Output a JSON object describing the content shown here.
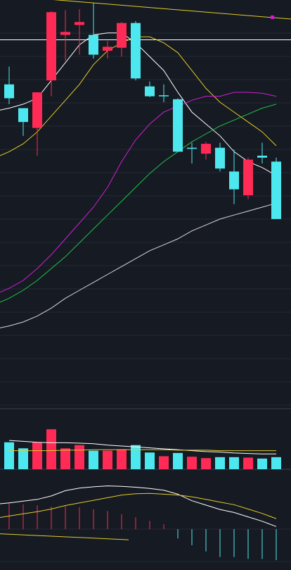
{
  "colors": {
    "background": "#161a22",
    "grid": "#232935",
    "separator": "#3a3f4a",
    "up": "#ff2a55",
    "down": "#4de8ef",
    "ma5": "#ffffff",
    "ma10": "#e2cd2a",
    "ma20": "#d11fd6",
    "ma30": "#21c44a",
    "ma60": "#d8d8d8",
    "trendline": "#e2cd2a",
    "crosshair": "#ffffff",
    "marker": "#e010e0"
  },
  "chart_data": [
    {
      "type": "candlestick",
      "price_range": [
        0,
        100
      ],
      "grid": true,
      "crosshair_level": 84.5,
      "candles": [
        {
          "o": 62,
          "h": 71,
          "l": 52,
          "c": 55,
          "dir": "down"
        },
        {
          "o": 43,
          "h": 50,
          "l": 36,
          "c": 50,
          "dir": "down"
        },
        {
          "o": 40,
          "h": 58,
          "l": 26,
          "c": 58,
          "dir": "up"
        },
        {
          "o": 64,
          "h": 99,
          "l": 56,
          "c": 98.5,
          "dir": "up"
        },
        {
          "o": 87,
          "h": 99.5,
          "l": 74,
          "c": 88.5,
          "dir": "up"
        },
        {
          "o": 92,
          "h": 100,
          "l": 77,
          "c": 93.5,
          "dir": "up"
        },
        {
          "o": 77,
          "h": 103,
          "l": 75,
          "c": 87,
          "dir": "down"
        },
        {
          "o": 81,
          "h": 84,
          "l": 75,
          "c": 79,
          "dir": "up"
        },
        {
          "o": 80.5,
          "h": 93.5,
          "l": 76,
          "c": 93,
          "dir": "up"
        },
        {
          "o": 93,
          "h": 94,
          "l": 64,
          "c": 65,
          "dir": "down"
        },
        {
          "o": 61,
          "h": 63.5,
          "l": 55.5,
          "c": 56,
          "dir": "down"
        },
        {
          "o": 56.5,
          "h": 62,
          "l": 53,
          "c": 56.5,
          "dir": "down"
        },
        {
          "o": 54.5,
          "h": 55,
          "l": 28,
          "c": 28,
          "dir": "down"
        },
        {
          "o": 30,
          "h": 32.5,
          "l": 22,
          "c": 30,
          "dir": "down"
        },
        {
          "o": 27,
          "h": 33,
          "l": 24,
          "c": 32,
          "dir": "up"
        },
        {
          "o": 30,
          "h": 32.5,
          "l": 18,
          "c": 19.5,
          "dir": "down"
        },
        {
          "o": 18,
          "h": 29,
          "l": 1.5,
          "c": 9,
          "dir": "down"
        },
        {
          "o": 6,
          "h": 25,
          "l": 4,
          "c": 24,
          "dir": "up"
        },
        {
          "o": 26,
          "h": 32.5,
          "l": 22,
          "c": 25,
          "dir": "down"
        },
        {
          "o": 23,
          "h": 25,
          "l": -6,
          "c": -6,
          "dir": "down"
        }
      ],
      "ma_series": [
        {
          "key": "ma5",
          "values": [
            50,
            52,
            55,
            64,
            73,
            82,
            87,
            88,
            88,
            83,
            76,
            69,
            58,
            48,
            42,
            36,
            28,
            23,
            20,
            16
          ]
        },
        {
          "key": "ma10",
          "values": [
            28,
            32,
            38,
            46,
            54,
            62,
            72,
            79,
            83,
            86,
            86,
            83,
            78,
            69,
            60,
            53,
            48,
            43,
            38,
            31
          ]
        },
        {
          "key": "ma20",
          "values": [
            -41,
            -37,
            -31,
            -24,
            -16,
            -8,
            0,
            10,
            23,
            34,
            42,
            48,
            51,
            54,
            56,
            56,
            58,
            58,
            57.5,
            56
          ]
        },
        {
          "key": "ma30",
          "values": [
            -46,
            -42,
            -37,
            -31,
            -25,
            -18,
            -11,
            -4,
            3,
            10,
            17,
            23,
            28,
            33,
            37,
            41,
            44,
            47,
            50,
            52
          ]
        },
        {
          "key": "ma60",
          "values": [
            -60,
            -58,
            -55,
            -51,
            -46,
            -42,
            -38,
            -34,
            -30,
            -26,
            -22,
            -19,
            -16,
            -12,
            -9,
            -6,
            -4,
            -2,
            0,
            2
          ]
        }
      ],
      "trendline": {
        "from": 107,
        "to": 95
      },
      "lower_trendline": {
        "from": -165,
        "to": -168,
        "end_index": 8.5
      }
    },
    {
      "type": "bar",
      "ylim": [
        0,
        100
      ],
      "values": [
        58,
        45,
        58,
        86,
        45,
        52,
        40,
        40,
        43,
        52,
        36,
        28,
        35,
        27,
        24,
        26,
        26,
        25,
        23,
        26
      ],
      "dirs": [
        "down",
        "down",
        "up",
        "up",
        "up",
        "up",
        "down",
        "up",
        "up",
        "down",
        "down",
        "up",
        "down",
        "up",
        "up",
        "down",
        "down",
        "up",
        "down",
        "down"
      ],
      "ma_a": [
        62,
        60,
        58,
        57,
        57,
        56,
        55,
        52,
        50,
        48,
        46,
        44,
        42,
        40,
        38,
        37,
        35,
        34,
        33,
        33
      ],
      "ma_b": [
        40,
        40,
        40,
        40,
        41,
        41,
        42,
        42,
        42,
        42,
        42,
        42,
        41,
        41,
        41,
        40,
        40,
        40,
        40,
        40
      ]
    },
    {
      "type": "bar",
      "ylim": [
        -100,
        100
      ],
      "hist": [
        78,
        75,
        72,
        68,
        70,
        66,
        60,
        55,
        45,
        36,
        25,
        15,
        -30,
        -52,
        -72,
        -90,
        -90,
        -96,
        -96,
        -100
      ],
      "dif": [
        60,
        64,
        68,
        76,
        88,
        94,
        97,
        99,
        98,
        96,
        93,
        89,
        80,
        65,
        55,
        45,
        38,
        28,
        18,
        6
      ],
      "dea": [
        30,
        35,
        40,
        46,
        54,
        60,
        66,
        72,
        78,
        81,
        82,
        80,
        78,
        74,
        68,
        62,
        56,
        46,
        36,
        24
      ]
    }
  ]
}
